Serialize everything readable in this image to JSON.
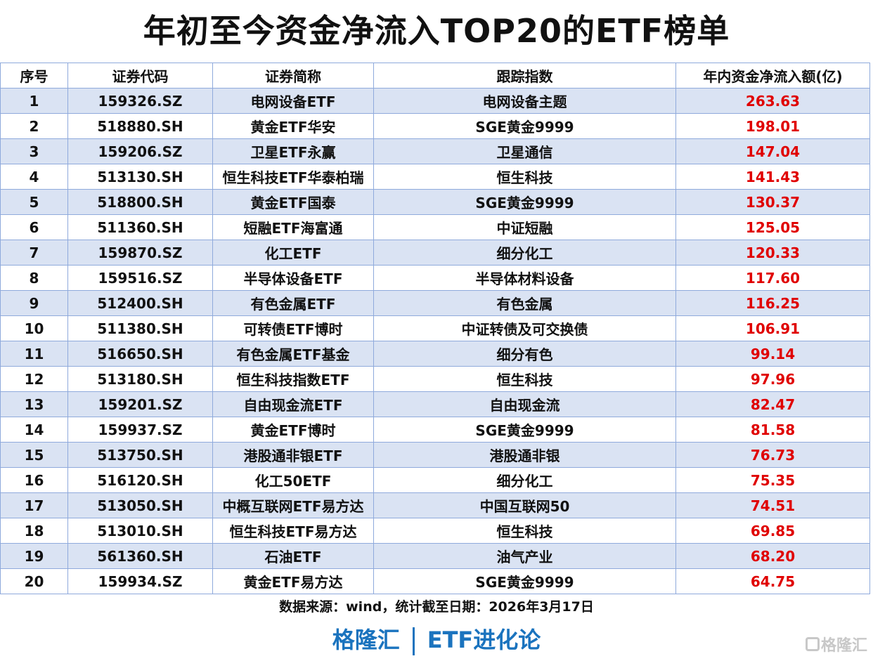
{
  "title": "年初至今资金净流入TOP20的ETF榜单",
  "table": {
    "headers": [
      "序号",
      "证券代码",
      "证券简称",
      "跟踪指数",
      "年内资金净流入额(亿)"
    ],
    "rows": [
      [
        "1",
        "159326.SZ",
        "电网设备ETF",
        "电网设备主题",
        "263.63"
      ],
      [
        "2",
        "518880.SH",
        "黄金ETF华安",
        "SGE黄金9999",
        "198.01"
      ],
      [
        "3",
        "159206.SZ",
        "卫星ETF永赢",
        "卫星通信",
        "147.04"
      ],
      [
        "4",
        "513130.SH",
        "恒生科技ETF华泰柏瑞",
        "恒生科技",
        "141.43"
      ],
      [
        "5",
        "518800.SH",
        "黄金ETF国泰",
        "SGE黄金9999",
        "130.37"
      ],
      [
        "6",
        "511360.SH",
        "短融ETF海富通",
        "中证短融",
        "125.05"
      ],
      [
        "7",
        "159870.SZ",
        "化工ETF",
        "细分化工",
        "120.33"
      ],
      [
        "8",
        "159516.SZ",
        "半导体设备ETF",
        "半导体材料设备",
        "117.60"
      ],
      [
        "9",
        "512400.SH",
        "有色金属ETF",
        "有色金属",
        "116.25"
      ],
      [
        "10",
        "511380.SH",
        "可转债ETF博时",
        "中证转债及可交换债",
        "106.91"
      ],
      [
        "11",
        "516650.SH",
        "有色金属ETF基金",
        "细分有色",
        "99.14"
      ],
      [
        "12",
        "513180.SH",
        "恒生科技指数ETF",
        "恒生科技",
        "97.96"
      ],
      [
        "13",
        "159201.SZ",
        "自由现金流ETF",
        "自由现金流",
        "82.47"
      ],
      [
        "14",
        "159937.SZ",
        "黄金ETF博时",
        "SGE黄金9999",
        "81.58"
      ],
      [
        "15",
        "513750.SH",
        "港股通非银ETF",
        "港股通非银",
        "76.73"
      ],
      [
        "16",
        "516120.SH",
        "化工50ETF",
        "细分化工",
        "75.35"
      ],
      [
        "17",
        "513050.SH",
        "中概互联网ETF易方达",
        "中国互联网50",
        "74.51"
      ],
      [
        "18",
        "513010.SH",
        "恒生科技ETF易方达",
        "恒生科技",
        "69.85"
      ],
      [
        "19",
        "561360.SH",
        "石油ETF",
        "油气产业",
        "68.20"
      ],
      [
        "20",
        "159934.SZ",
        "黄金ETF易方达",
        "SGE黄金9999",
        "64.75"
      ]
    ]
  },
  "source": "数据来源：wind，统计截至日期：2026年3月17日",
  "brand": {
    "left": "格隆汇",
    "right": "ETF进化论"
  },
  "watermark": "格隆汇",
  "colors": {
    "value_red": "#e00000",
    "brand_blue": "#1a73be",
    "stripe": "#dae3f3",
    "border": "#8faadc"
  }
}
